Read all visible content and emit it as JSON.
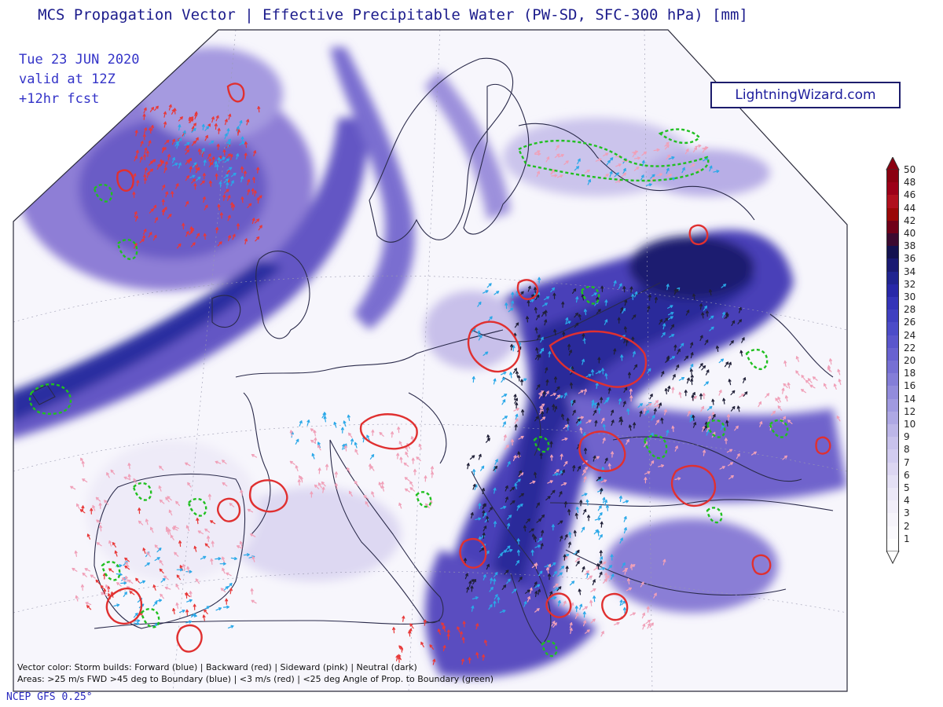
{
  "title": "MCS Propagation Vector | Effective Precipitable Water (PW-SD, SFC-300 hPa) [mm]",
  "date": "Tue 23 JUN 2020",
  "valid": "valid at 12Z",
  "forecast": "+12hr fcst",
  "brand": "LightningWizard.com",
  "model": "NCEP GFS 0.25°",
  "footnote_vectors": "Vector color: Storm builds: Forward (blue) | Backward (red) | Sideward (pink) | Neutral (dark)",
  "footnote_areas": "Areas: >25 m/s FWD >45 deg to Boundary (blue) | <3 m/s (red) | <25 deg Angle of Prop. to Boundary (green)",
  "legend": {
    "labels": [
      "50",
      "48",
      "46",
      "44",
      "42",
      "40",
      "38",
      "36",
      "34",
      "32",
      "30",
      "28",
      "26",
      "24",
      "22",
      "20",
      "18",
      "16",
      "14",
      "12",
      "10",
      "9",
      "8",
      "7",
      "6",
      "5",
      "4",
      "3",
      "2",
      "1"
    ],
    "colors": [
      "#8b0010",
      "#9c0018",
      "#b0101e",
      "#9a0808",
      "#700018",
      "#3c0a30",
      "#141250",
      "#1a1a72",
      "#202490",
      "#2828a8",
      "#3434b8",
      "#4040c0",
      "#4c4cc8",
      "#5a56cc",
      "#6862d0",
      "#7670d4",
      "#847ed8",
      "#928cdc",
      "#a09ae0",
      "#aea8e4",
      "#bcb6e8",
      "#c8c2ec",
      "#d2ccf0",
      "#dcd6f2",
      "#e4e0f5",
      "#ebe8f7",
      "#f1eef9",
      "#f6f4fb",
      "#faf9fd",
      "#ffffff"
    ]
  },
  "colors": {
    "forward_vector": "#2aa8e8",
    "backward_vector": "#e83838",
    "sideward_vector": "#f0a0b8",
    "neutral_vector": "#202038",
    "area_red": "#e03030",
    "area_green": "#20c020",
    "coastline": "#2a2a4a"
  }
}
